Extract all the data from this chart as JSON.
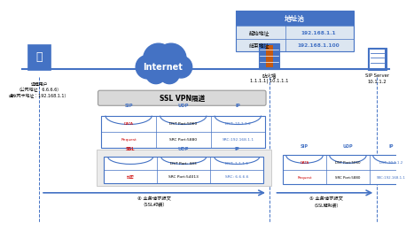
{
  "bg_color": "#ffffff",
  "blue": "#4472c4",
  "light_blue": "#dce6f1",
  "red": "#cc0000",
  "orange": "#c55a11",
  "gray_bg": "#d9d9d9",
  "packet_bg": "#ffffff",
  "addr_pool": {
    "title": "地址池",
    "start_label": "起始地址",
    "start_value": "192.168.1.1",
    "end_label": "结束地址",
    "end_value": "192.168.1.100"
  },
  "user_label": "远程用户\n（公网地址：6.6.6.6）\n虚拟网卡地址：192.168.1.1）",
  "fw_label1": "防火墙",
  "fw_label2": "1.1.1.1| 10.1.1.1",
  "sip_label1": "SIP Server",
  "sip_label2": "10.1.1.2",
  "tunnel_label": "SSL VPN隔道",
  "outer_labels": [
    "SIP",
    "UDP",
    "IP"
  ],
  "outer_row1": [
    "Request",
    "SRC Port:5880",
    "SRC:192.168.1.1"
  ],
  "outer_row2": [
    "DATA",
    "DST Port:5060",
    "DST: 10.1.1.2"
  ],
  "inner_labels": [
    "SSL",
    "UDP",
    "IP"
  ],
  "inner_row1_col0": "加密",
  "inner_row1_col1": "SRC Port:54013",
  "inner_row1_col2": "SRC: 6.6.6.6",
  "inner_row2_col0": "",
  "inner_row2_col1": "DST Port: 443",
  "inner_row2_col2": "DST: 1.1.1.1",
  "arrow3_label1": "业务请求报文",
  "arrow3_label2": "（SSL封装）",
  "arrow3_num": "④",
  "right_outer_labels": [
    "SIP",
    "UDP",
    "IP"
  ],
  "right_outer_row1": [
    "Request",
    "SRC Port:5880",
    "SRC:192.168.1.1"
  ],
  "right_outer_row2": [
    "DATA",
    "DST Port:5060",
    "DST: 10.1.1.2"
  ],
  "arrow4_label1": "业务请求报文",
  "arrow4_num": "⑤"
}
